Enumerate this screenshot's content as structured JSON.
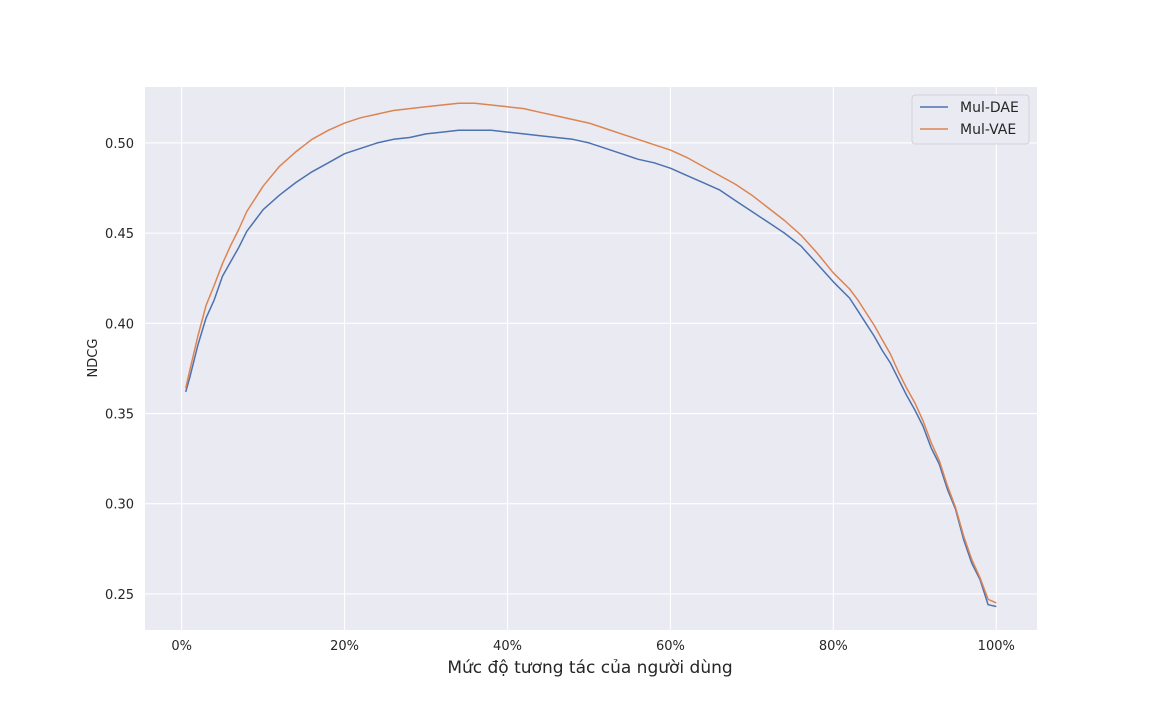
{
  "chart_data": {
    "type": "line",
    "xlabel": "Mức độ tương tác của người dùng",
    "ylabel": "NDCG",
    "xlim": [
      -0.045,
      1.05
    ],
    "ylim": [
      0.23,
      0.531
    ],
    "x_ticks": [
      0,
      0.2,
      0.4,
      0.6,
      0.8,
      1.0
    ],
    "x_tick_labels": [
      "0%",
      "20%",
      "40%",
      "60%",
      "80%",
      "100%"
    ],
    "y_ticks": [
      0.25,
      0.3,
      0.35,
      0.4,
      0.45,
      0.5
    ],
    "y_tick_labels": [
      "0.25",
      "0.30",
      "0.35",
      "0.40",
      "0.45",
      "0.50"
    ],
    "grid": true,
    "legend_position": "top-right",
    "background": "#eaeaf2",
    "series": [
      {
        "name": "Mul-DAE",
        "color": "#4c72b0",
        "x": [
          0.005,
          0.01,
          0.02,
          0.03,
          0.04,
          0.05,
          0.06,
          0.07,
          0.08,
          0.09,
          0.1,
          0.12,
          0.14,
          0.16,
          0.18,
          0.2,
          0.22,
          0.24,
          0.26,
          0.28,
          0.3,
          0.32,
          0.34,
          0.36,
          0.38,
          0.4,
          0.42,
          0.44,
          0.46,
          0.48,
          0.5,
          0.52,
          0.54,
          0.56,
          0.58,
          0.6,
          0.62,
          0.64,
          0.66,
          0.68,
          0.7,
          0.72,
          0.74,
          0.76,
          0.78,
          0.8,
          0.82,
          0.83,
          0.84,
          0.85,
          0.86,
          0.87,
          0.88,
          0.89,
          0.9,
          0.91,
          0.92,
          0.93,
          0.94,
          0.95,
          0.96,
          0.97,
          0.98,
          0.99,
          1.0
        ],
        "values": [
          0.362,
          0.37,
          0.388,
          0.403,
          0.413,
          0.426,
          0.434,
          0.442,
          0.451,
          0.457,
          0.463,
          0.471,
          0.478,
          0.484,
          0.489,
          0.494,
          0.497,
          0.5,
          0.502,
          0.503,
          0.505,
          0.506,
          0.507,
          0.507,
          0.507,
          0.506,
          0.505,
          0.504,
          0.503,
          0.502,
          0.5,
          0.497,
          0.494,
          0.491,
          0.489,
          0.486,
          0.482,
          0.478,
          0.474,
          0.468,
          0.462,
          0.456,
          0.45,
          0.443,
          0.433,
          0.423,
          0.414,
          0.407,
          0.4,
          0.393,
          0.385,
          0.378,
          0.369,
          0.36,
          0.352,
          0.343,
          0.331,
          0.322,
          0.308,
          0.297,
          0.28,
          0.267,
          0.258,
          0.244,
          0.243
        ]
      },
      {
        "name": "Mul-VAE",
        "color": "#dd8452",
        "x": [
          0.005,
          0.01,
          0.02,
          0.03,
          0.04,
          0.05,
          0.06,
          0.07,
          0.08,
          0.09,
          0.1,
          0.12,
          0.14,
          0.16,
          0.18,
          0.2,
          0.22,
          0.24,
          0.26,
          0.28,
          0.3,
          0.32,
          0.34,
          0.36,
          0.38,
          0.4,
          0.42,
          0.44,
          0.46,
          0.48,
          0.5,
          0.52,
          0.54,
          0.56,
          0.58,
          0.6,
          0.62,
          0.64,
          0.66,
          0.68,
          0.7,
          0.72,
          0.74,
          0.76,
          0.78,
          0.8,
          0.82,
          0.83,
          0.84,
          0.85,
          0.86,
          0.87,
          0.88,
          0.89,
          0.9,
          0.91,
          0.92,
          0.93,
          0.94,
          0.95,
          0.96,
          0.97,
          0.98,
          0.99,
          1.0
        ],
        "values": [
          0.364,
          0.374,
          0.393,
          0.41,
          0.421,
          0.433,
          0.443,
          0.452,
          0.462,
          0.469,
          0.476,
          0.487,
          0.495,
          0.502,
          0.507,
          0.511,
          0.514,
          0.516,
          0.518,
          0.519,
          0.52,
          0.521,
          0.522,
          0.522,
          0.521,
          0.52,
          0.519,
          0.517,
          0.515,
          0.513,
          0.511,
          0.508,
          0.505,
          0.502,
          0.499,
          0.496,
          0.492,
          0.487,
          0.482,
          0.477,
          0.471,
          0.464,
          0.457,
          0.449,
          0.439,
          0.428,
          0.419,
          0.413,
          0.406,
          0.399,
          0.391,
          0.383,
          0.373,
          0.364,
          0.356,
          0.346,
          0.334,
          0.324,
          0.31,
          0.298,
          0.282,
          0.269,
          0.259,
          0.247,
          0.245
        ]
      }
    ]
  }
}
